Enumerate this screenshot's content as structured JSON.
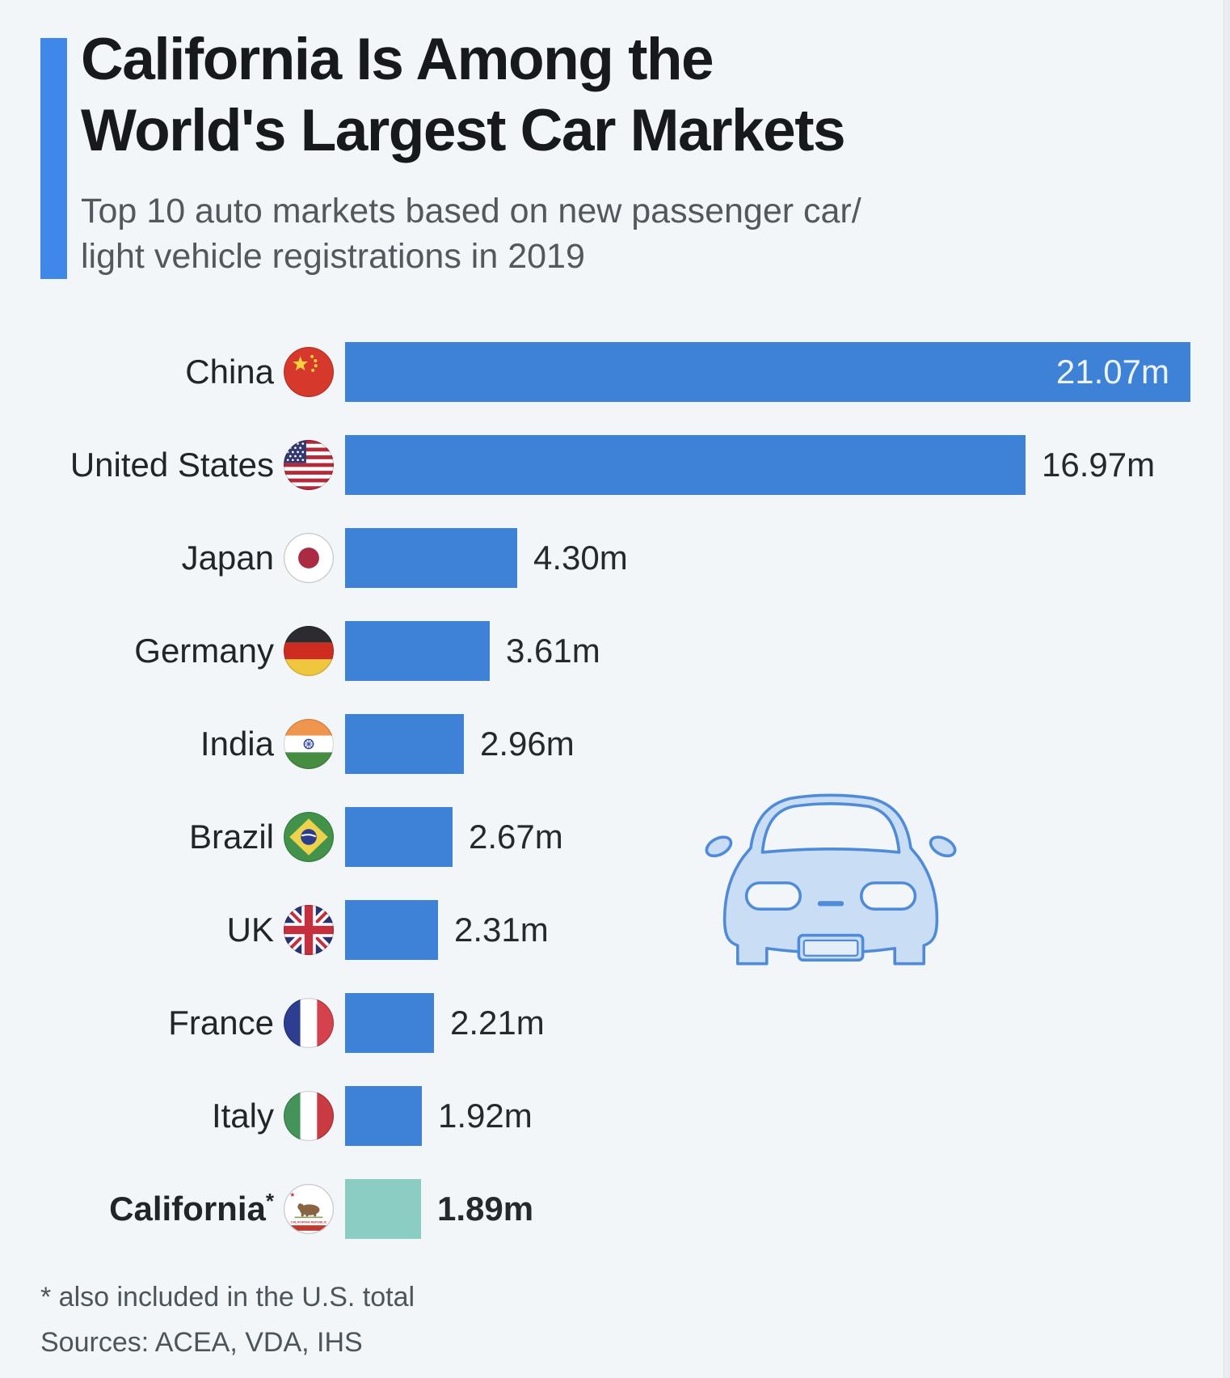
{
  "header": {
    "title_line1": "California Is Among the",
    "title_line2": "World's Largest Car Markets",
    "subtitle_line1": "Top 10 auto markets based on new passenger car/",
    "subtitle_line2": "light vehicle registrations in 2019",
    "accent_color": "#3f87e8"
  },
  "chart_data": {
    "type": "bar",
    "orientation": "horizontal",
    "unit": "million new passenger car/light vehicle registrations",
    "year": "2019",
    "categories": [
      "China",
      "United States",
      "Japan",
      "Germany",
      "India",
      "Brazil",
      "UK",
      "France",
      "Italy",
      "California*"
    ],
    "values": [
      21.07,
      16.97,
      4.3,
      3.61,
      2.96,
      2.67,
      2.31,
      2.21,
      1.92,
      1.89
    ],
    "max_value": 21.07,
    "bar_color": "#3e82d8",
    "highlight_color": "#8bcdc3",
    "legend_position": "none",
    "grid": false,
    "rows": [
      {
        "label": "China",
        "sup": "",
        "value": 21.07,
        "value_label": "21.07m",
        "flag": "china-flag",
        "color": "#3e82d8",
        "value_inside": true,
        "bold": false
      },
      {
        "label": "United States",
        "sup": "",
        "value": 16.97,
        "value_label": "16.97m",
        "flag": "us-flag",
        "color": "#3e82d8",
        "value_inside": false,
        "bold": false
      },
      {
        "label": "Japan",
        "sup": "",
        "value": 4.3,
        "value_label": "4.30m",
        "flag": "japan-flag",
        "color": "#3e82d8",
        "value_inside": false,
        "bold": false
      },
      {
        "label": "Germany",
        "sup": "",
        "value": 3.61,
        "value_label": "3.61m",
        "flag": "germany-flag",
        "color": "#3e82d8",
        "value_inside": false,
        "bold": false
      },
      {
        "label": "India",
        "sup": "",
        "value": 2.96,
        "value_label": "2.96m",
        "flag": "india-flag",
        "color": "#3e82d8",
        "value_inside": false,
        "bold": false
      },
      {
        "label": "Brazil",
        "sup": "",
        "value": 2.67,
        "value_label": "2.67m",
        "flag": "brazil-flag",
        "color": "#3e82d8",
        "value_inside": false,
        "bold": false
      },
      {
        "label": "UK",
        "sup": "",
        "value": 2.31,
        "value_label": "2.31m",
        "flag": "uk-flag",
        "color": "#3e82d8",
        "value_inside": false,
        "bold": false
      },
      {
        "label": "France",
        "sup": "",
        "value": 2.21,
        "value_label": "2.21m",
        "flag": "france-flag",
        "color": "#3e82d8",
        "value_inside": false,
        "bold": false
      },
      {
        "label": "Italy",
        "sup": "",
        "value": 1.92,
        "value_label": "1.92m",
        "flag": "italy-flag",
        "color": "#3e82d8",
        "value_inside": false,
        "bold": false
      },
      {
        "label": "California",
        "sup": "*",
        "value": 1.89,
        "value_label": "1.89m",
        "flag": "california-flag",
        "color": "#8bcdc3",
        "value_inside": false,
        "bold": true
      }
    ],
    "california_flag_text": "CALIFORNIA REPUBLIC"
  },
  "footer": {
    "note": "* also included in the U.S. total",
    "sources": "Sources: ACEA, VDA, IHS"
  }
}
